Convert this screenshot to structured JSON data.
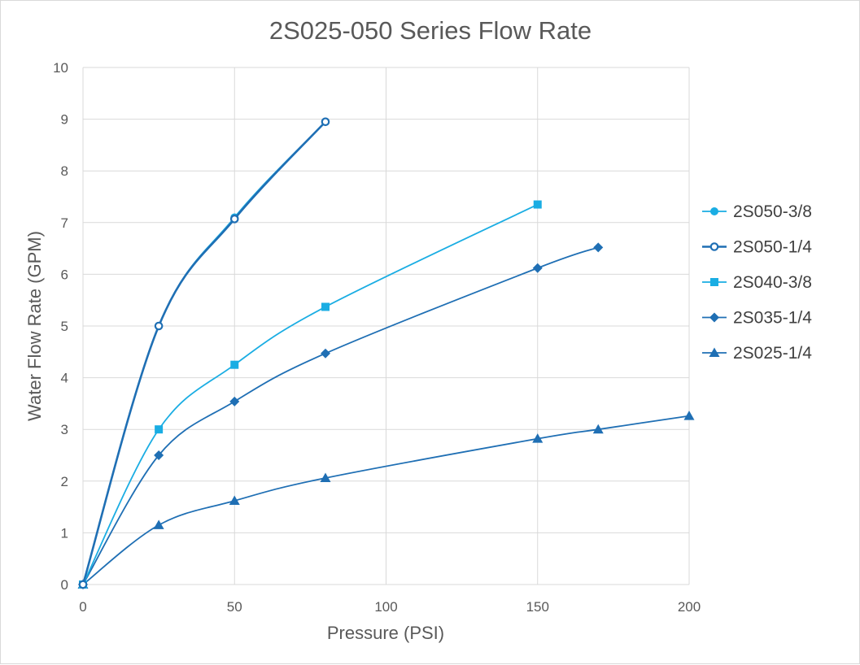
{
  "chart_data": {
    "type": "line",
    "title": "2S025-050 Series Flow Rate",
    "xlabel": "Pressure (PSI)",
    "ylabel": "Water Flow Rate (GPM)",
    "xlim": [
      0,
      200
    ],
    "ylim": [
      0,
      10
    ],
    "xticks": [
      0,
      50,
      100,
      150,
      200
    ],
    "yticks": [
      0,
      1,
      2,
      3,
      4,
      5,
      6,
      7,
      8,
      9,
      10
    ],
    "grid": true,
    "legend_position": "right",
    "series": [
      {
        "name": "2S050-3/8",
        "color": "#1AADE3",
        "marker": "circle",
        "x": [
          0,
          25,
          50,
          80
        ],
        "y": [
          0,
          5.0,
          7.1,
          8.95
        ]
      },
      {
        "name": "2S050-1/4",
        "color": "#1F6FB4",
        "marker": "circle-open",
        "x": [
          0,
          25,
          50,
          80
        ],
        "y": [
          0,
          5.0,
          7.07,
          8.95
        ]
      },
      {
        "name": "2S040-3/8",
        "color": "#1AADE3",
        "marker": "square",
        "x": [
          0,
          25,
          50,
          80,
          150
        ],
        "y": [
          0,
          3.0,
          4.25,
          5.37,
          7.35
        ]
      },
      {
        "name": "2S035-1/4",
        "color": "#1F6FB4",
        "marker": "diamond",
        "x": [
          0,
          25,
          50,
          80,
          150,
          170
        ],
        "y": [
          0,
          2.5,
          3.54,
          4.47,
          6.12,
          6.52
        ]
      },
      {
        "name": "2S025-1/4",
        "color": "#1F6FB4",
        "marker": "triangle",
        "x": [
          0,
          25,
          50,
          80,
          150,
          170,
          200
        ],
        "y": [
          0,
          1.15,
          1.62,
          2.06,
          2.82,
          3.0,
          3.26
        ]
      }
    ]
  }
}
